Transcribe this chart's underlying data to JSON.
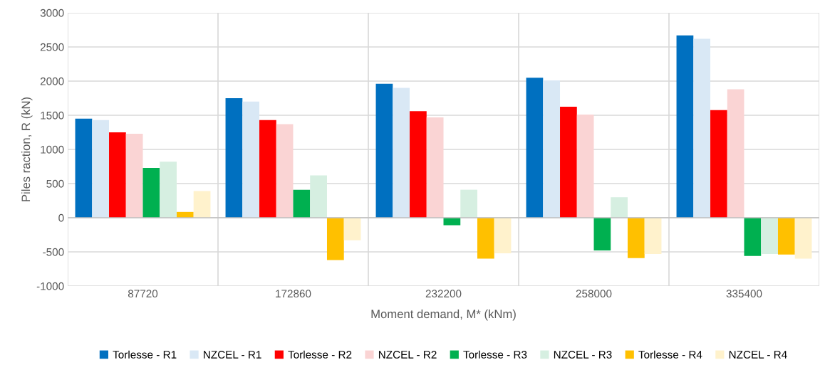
{
  "chart_data": {
    "type": "bar",
    "xlabel": "Moment demand, M* (kNm)",
    "ylabel": "Piles raction, R (kN)",
    "categories": [
      "87720",
      "172860",
      "232200",
      "258000",
      "335400"
    ],
    "series": [
      {
        "name": "Torlesse - R1",
        "color": "#0070c0",
        "values": [
          1450,
          1750,
          1960,
          2050,
          2670
        ]
      },
      {
        "name": "NZCEL - R1",
        "color": "#d9e8f5",
        "values": [
          1430,
          1700,
          1900,
          2010,
          2620
        ]
      },
      {
        "name": "Torlesse - R2",
        "color": "#ff0000",
        "values": [
          1250,
          1430,
          1560,
          1625,
          1575
        ]
      },
      {
        "name": "NZCEL - R2",
        "color": "#fad4d4",
        "values": [
          1230,
          1370,
          1470,
          1510,
          1880
        ]
      },
      {
        "name": "Torlesse - R3",
        "color": "#00b050",
        "values": [
          730,
          410,
          -110,
          -480,
          -560
        ]
      },
      {
        "name": "NZCEL - R3",
        "color": "#d6efe1",
        "values": [
          820,
          620,
          410,
          300,
          -530
        ]
      },
      {
        "name": "Torlesse - R4",
        "color": "#ffc000",
        "values": [
          85,
          -620,
          -600,
          -590,
          -540
        ]
      },
      {
        "name": "NZCEL - R4",
        "color": "#fff2cc",
        "values": [
          390,
          -330,
          -520,
          -530,
          -600
        ]
      }
    ],
    "ylim": [
      -1000,
      3000
    ],
    "yticks": [
      -1000,
      -500,
      0,
      500,
      1000,
      1500,
      2000,
      2500,
      3000
    ],
    "grid": true,
    "legend": "bottom"
  }
}
